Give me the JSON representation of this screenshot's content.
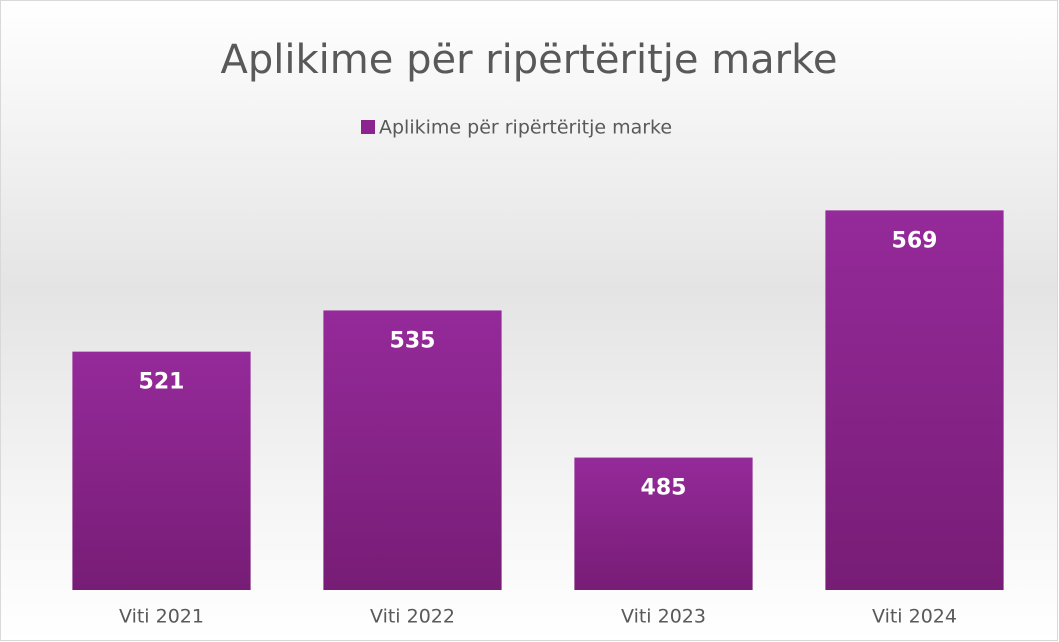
{
  "chart_data": {
    "type": "bar",
    "title": "Aplikime për ripërtëritje marke",
    "categories": [
      "Viti 2021",
      "Viti 2022",
      "Viti 2023",
      "Viti 2024"
    ],
    "series": [
      {
        "name": "Aplikime për ripërtëritje marke",
        "color": "#8b2490",
        "values": [
          521,
          535,
          485,
          569
        ]
      }
    ],
    "ylim": [
      440,
      580
    ],
    "legend": "top"
  }
}
